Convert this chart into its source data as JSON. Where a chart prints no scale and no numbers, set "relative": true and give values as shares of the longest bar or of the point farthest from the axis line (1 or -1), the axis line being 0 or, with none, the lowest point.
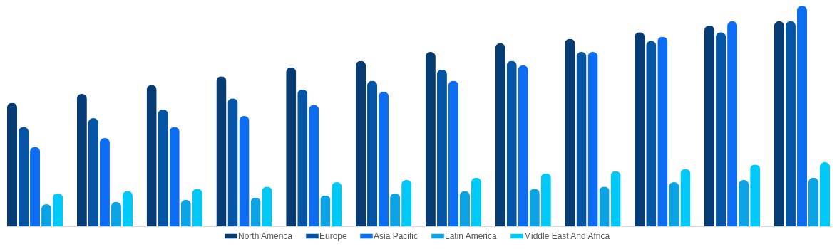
{
  "chart_data": {
    "type": "bar",
    "relative": true,
    "legend": "bottom",
    "categories": [
      null,
      null,
      null,
      null,
      null,
      null,
      null,
      null,
      null,
      null,
      null,
      null
    ],
    "series": [
      {
        "name": "North America",
        "color": "#073b74",
        "values": [
          0.56,
          0.6,
          0.64,
          0.68,
          0.72,
          0.75,
          0.79,
          0.83,
          0.85,
          0.88,
          0.91,
          0.93
        ]
      },
      {
        "name": "Europe",
        "color": "#0455a6",
        "values": [
          0.45,
          0.49,
          0.53,
          0.58,
          0.62,
          0.66,
          0.71,
          0.75,
          0.79,
          0.84,
          0.88,
          0.93
        ]
      },
      {
        "name": "Asia Pacific",
        "color": "#0c6cf2",
        "values": [
          0.36,
          0.4,
          0.45,
          0.5,
          0.55,
          0.61,
          0.66,
          0.73,
          0.79,
          0.86,
          0.93,
          1
        ]
      },
      {
        "name": "Latin America",
        "color": "#0ba3e3",
        "values": [
          0.1,
          0.11,
          0.12,
          0.13,
          0.14,
          0.15,
          0.16,
          0.17,
          0.18,
          0.2,
          0.21,
          0.22
        ]
      },
      {
        "name": "Middle East And Africa",
        "color": "#00c9f7",
        "values": [
          0.15,
          0.16,
          0.17,
          0.18,
          0.2,
          0.21,
          0.22,
          0.24,
          0.25,
          0.26,
          0.28,
          0.29
        ]
      }
    ]
  }
}
